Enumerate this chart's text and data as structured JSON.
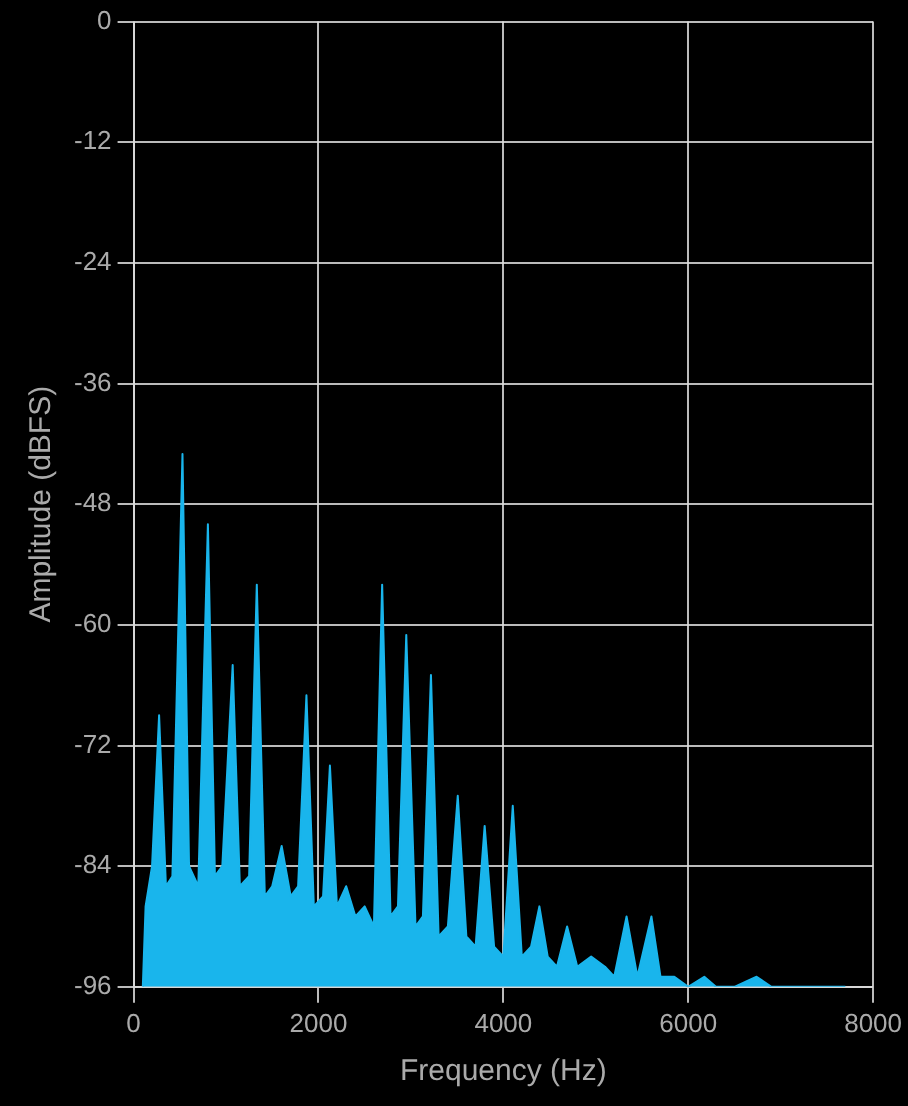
{
  "chart_data": {
    "type": "area",
    "xlabel": "Frequency (Hz)",
    "ylabel": "Amplitude (dBFS)",
    "x": [
      100,
      130,
      200,
      276,
      350,
      420,
      529,
      600,
      700,
      804,
      880,
      960,
      1072,
      1150,
      1250,
      1333,
      1420,
      1500,
      1602,
      1700,
      1780,
      1870,
      1950,
      2050,
      2124,
      2200,
      2300,
      2400,
      2500,
      2600,
      2689,
      2780,
      2860,
      2950,
      3050,
      3130,
      3217,
      3300,
      3400,
      3507,
      3600,
      3700,
      3798,
      3900,
      4000,
      4102,
      4200,
      4300,
      4390,
      4480,
      4580,
      4690,
      4800,
      4950,
      5100,
      5200,
      5333,
      5450,
      5602,
      5700,
      5850,
      6000,
      6174,
      6300,
      6500,
      6740,
      6900,
      7100,
      7300,
      7700
    ],
    "series": [
      {
        "color": "#19b5ec",
        "values": [
          -96,
          -88,
          -84,
          -69,
          -86,
          -85,
          -43,
          -84,
          -86,
          -50,
          -85,
          -84,
          -64,
          -86,
          -85,
          -56,
          -87,
          -86,
          -82,
          -87,
          -86,
          -67,
          -88,
          -87,
          -74,
          -88,
          -86,
          -89,
          -88,
          -90,
          -56,
          -89,
          -88,
          -61,
          -90,
          -89,
          -65,
          -91,
          -90,
          -77,
          -91,
          -92,
          -80,
          -92,
          -93,
          -78,
          -93,
          -92,
          -88,
          -93,
          -94,
          -90,
          -94,
          -93,
          -94,
          -95,
          -89,
          -95,
          -89,
          -95,
          -95,
          -96,
          -95,
          -96,
          -96,
          -95,
          -96,
          -96,
          -96,
          -96
        ]
      }
    ],
    "xlim": [
      0,
      8000
    ],
    "xticks": [
      0,
      2000,
      4000,
      6000,
      8000
    ],
    "ylim": [
      -96,
      0
    ],
    "yticks": [
      0,
      -12,
      -24,
      -36,
      -48,
      -60,
      -72,
      -84,
      -96
    ],
    "grid": true,
    "legend": false,
    "marker": "none"
  }
}
